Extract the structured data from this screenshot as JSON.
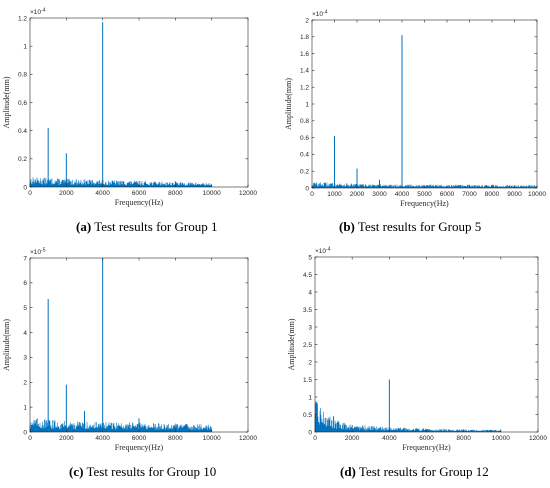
{
  "colors": {
    "series": "#0072BD",
    "axis": "#262626"
  },
  "chart_data": [
    {
      "type": "line",
      "caption": {
        "label": "(a)",
        "text": "Test results for Group 1"
      },
      "xlabel": "Frequency(Hz)",
      "ylabel": "Amplitude(mm)",
      "y_multiplier": "×10",
      "y_exponent": "-4",
      "xlim": [
        0,
        12000
      ],
      "ylim": [
        0,
        1.2
      ],
      "xticks": [
        0,
        2000,
        4000,
        6000,
        8000,
        10000,
        12000
      ],
      "xtick_labels": [
        "0",
        "2000",
        "4000",
        "6000",
        "8000",
        "10000",
        "12000"
      ],
      "yticks": [
        0,
        0.2,
        0.4,
        0.6,
        0.8,
        1,
        1.2
      ],
      "ytick_labels": [
        "0",
        "0.2",
        "0.4",
        "0.6",
        "0.8",
        "1",
        "1.2"
      ],
      "data_range": [
        0,
        10000
      ],
      "noise_floor": {
        "x": [
          0,
          2000,
          4000,
          6000,
          8000,
          10000
        ],
        "y": [
          0.05,
          0.04,
          0.035,
          0.03,
          0.025,
          0.02
        ]
      },
      "peaks": {
        "x": [
          1000,
          2000,
          4000,
          8000
        ],
        "y": [
          0.42,
          0.24,
          1.17,
          0.04
        ]
      }
    },
    {
      "type": "line",
      "caption": {
        "label": "(b)",
        "text": "Test results for Group 5"
      },
      "xlabel": "Frequency(Hz)",
      "ylabel": "Amplitude(mm)",
      "y_multiplier": "×10",
      "y_exponent": "-4",
      "xlim": [
        0,
        10000
      ],
      "ylim": [
        0,
        2
      ],
      "xticks": [
        0,
        1000,
        2000,
        3000,
        4000,
        5000,
        6000,
        7000,
        8000,
        9000,
        10000
      ],
      "xtick_labels": [
        "0",
        "1000",
        "2000",
        "3000",
        "4000",
        "5000",
        "6000",
        "7000",
        "8000",
        "9000",
        "10000"
      ],
      "yticks": [
        0,
        0.2,
        0.4,
        0.6,
        0.8,
        1,
        1.2,
        1.4,
        1.6,
        1.8,
        2
      ],
      "ytick_labels": [
        "0",
        "0.2",
        "0.4",
        "0.6",
        "0.8",
        "1",
        "1.2",
        "1.4",
        "1.6",
        "1.8",
        "2"
      ],
      "data_range": [
        0,
        10000
      ],
      "noise_floor": {
        "x": [
          0,
          2000,
          4000,
          6000,
          8000,
          10000
        ],
        "y": [
          0.05,
          0.035,
          0.03,
          0.028,
          0.025,
          0.025
        ]
      },
      "peaks": {
        "x": [
          1000,
          2000,
          3000,
          4000,
          8000
        ],
        "y": [
          0.62,
          0.23,
          0.1,
          1.82,
          0.04
        ]
      }
    },
    {
      "type": "line",
      "caption": {
        "label": "(c)",
        "text": "Test results for Group 10"
      },
      "xlabel": "Frequency(Hz)",
      "ylabel": "Amplitude(mm)",
      "y_multiplier": "×10",
      "y_exponent": "-5",
      "xlim": [
        0,
        12000
      ],
      "ylim": [
        0,
        7
      ],
      "xticks": [
        0,
        2000,
        4000,
        6000,
        8000,
        10000,
        12000
      ],
      "xtick_labels": [
        "0",
        "2000",
        "4000",
        "6000",
        "8000",
        "10000",
        "12000"
      ],
      "yticks": [
        0,
        1,
        2,
        3,
        4,
        5,
        6,
        7
      ],
      "ytick_labels": [
        "0",
        "1",
        "2",
        "3",
        "4",
        "5",
        "6",
        "7"
      ],
      "data_range": [
        0,
        10000
      ],
      "noise_floor": {
        "x": [
          0,
          2000,
          4000,
          6000,
          8000,
          10000
        ],
        "y": [
          0.4,
          0.3,
          0.28,
          0.26,
          0.24,
          0.2
        ]
      },
      "peaks": {
        "x": [
          1000,
          2000,
          3000,
          4000,
          6000
        ],
        "y": [
          5.35,
          1.9,
          0.85,
          7.0,
          0.55
        ]
      }
    },
    {
      "type": "line",
      "caption": {
        "label": "(d)",
        "text": "Test results for Group 12"
      },
      "xlabel": "Frequency(Hz)",
      "ylabel": "Amplitude(mm)",
      "y_multiplier": "×10",
      "y_exponent": "-4",
      "xlim": [
        0,
        12000
      ],
      "ylim": [
        0,
        5
      ],
      "xticks": [
        0,
        2000,
        4000,
        6000,
        8000,
        10000,
        12000
      ],
      "xtick_labels": [
        "0",
        "2000",
        "4000",
        "6000",
        "8000",
        "10000",
        "12000"
      ],
      "yticks": [
        0,
        0.5,
        1,
        1.5,
        2,
        2.5,
        3,
        3.5,
        4,
        4.5,
        5
      ],
      "ytick_labels": [
        "0",
        "0.5",
        "1",
        "1.5",
        "2",
        "2.5",
        "3",
        "3.5",
        "4",
        "4.5",
        "5"
      ],
      "data_range": [
        0,
        10000
      ],
      "noise_floor": {
        "x": [
          0,
          500,
          1000,
          2000,
          4000,
          6000,
          8000,
          10000
        ],
        "y": [
          0.65,
          0.4,
          0.25,
          0.15,
          0.1,
          0.07,
          0.05,
          0.04
        ]
      },
      "peaks": {
        "x": [
          1000,
          2000,
          4000
        ],
        "y": [
          0.45,
          0.2,
          1.5
        ]
      }
    }
  ]
}
